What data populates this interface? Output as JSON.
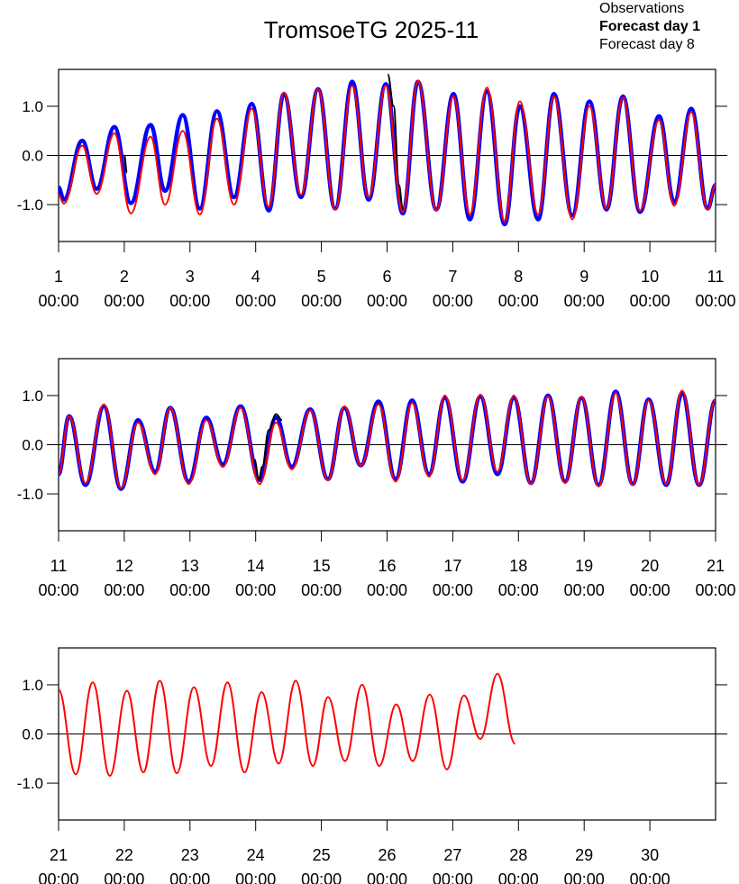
{
  "chart_data": [
    {
      "type": "line",
      "title": "TromsoeTG 2025-11",
      "xlim": [
        1,
        11
      ],
      "ylim": [
        -1.75,
        1.75
      ],
      "xticks": [
        {
          "value": 1,
          "label": [
            "1",
            "00:00"
          ]
        },
        {
          "value": 2,
          "label": [
            "2",
            "00:00"
          ]
        },
        {
          "value": 3,
          "label": [
            "3",
            "00:00"
          ]
        },
        {
          "value": 4,
          "label": [
            "4",
            "00:00"
          ]
        },
        {
          "value": 5,
          "label": [
            "5",
            "00:00"
          ]
        },
        {
          "value": 6,
          "label": [
            "6",
            "00:00"
          ]
        },
        {
          "value": 7,
          "label": [
            "7",
            "00:00"
          ]
        },
        {
          "value": 8,
          "label": [
            "8",
            "00:00"
          ]
        },
        {
          "value": 9,
          "label": [
            "9",
            "00:00"
          ]
        },
        {
          "value": 10,
          "label": [
            "10",
            "00:00"
          ]
        },
        {
          "value": 11,
          "label": [
            "11",
            "00:00"
          ]
        }
      ],
      "yticks": [
        {
          "value": -1,
          "label": "-1.0"
        },
        {
          "value": 0,
          "label": "0.0"
        },
        {
          "value": 1,
          "label": "1.0"
        }
      ],
      "zero_line": true,
      "series": [
        {
          "name": "Observations",
          "color": "#000000",
          "width": 2,
          "x": [
            2.0,
            2.04,
            2.05,
            6.01,
            6.1,
            6.18,
            6.24
          ],
          "values": [
            0.0,
            -0.35,
            null,
            1.65,
            1.0,
            -0.6,
            -1.1
          ]
        },
        {
          "name": "Forecast day 1",
          "color": "#0000ff",
          "width": 4.5,
          "bold": true,
          "x": [
            1.0,
            1.08,
            1.36,
            1.58,
            1.85,
            2.1,
            2.4,
            2.62,
            2.89,
            3.15,
            3.41,
            3.67,
            3.94,
            4.2,
            4.43,
            4.69,
            4.95,
            5.21,
            5.47,
            5.72,
            5.98,
            6.24,
            6.47,
            6.75,
            7.01,
            7.26,
            7.52,
            7.79,
            8.02,
            8.3,
            8.54,
            8.82,
            9.08,
            9.34,
            9.59,
            9.85,
            10.14,
            10.37,
            10.63,
            10.88,
            11.0
          ],
          "values": [
            -0.65,
            -0.9,
            0.3,
            -0.68,
            0.58,
            -0.97,
            0.62,
            -0.72,
            0.82,
            -1.08,
            0.9,
            -0.85,
            1.05,
            -1.12,
            1.25,
            -0.85,
            1.35,
            -1.08,
            1.5,
            -0.9,
            1.45,
            -1.18,
            1.5,
            -1.1,
            1.25,
            -1.3,
            1.3,
            -1.4,
            1.0,
            -1.3,
            1.25,
            -1.22,
            1.1,
            -1.1,
            1.2,
            -1.15,
            0.8,
            -0.95,
            0.95,
            -1.08,
            -0.6
          ]
        },
        {
          "name": "Forecast day 8",
          "color": "#ff0000",
          "width": 2,
          "x": [
            1.0,
            1.08,
            1.36,
            1.58,
            1.85,
            2.1,
            2.4,
            2.62,
            2.89,
            3.15,
            3.41,
            3.67,
            3.94,
            4.2,
            4.43,
            4.69,
            4.95,
            5.21,
            5.47,
            5.72,
            5.98,
            6.24,
            6.47,
            6.75,
            7.01,
            7.26,
            7.52,
            7.79,
            8.02,
            8.3,
            8.54,
            8.82,
            9.08,
            9.34,
            9.59,
            9.85,
            10.14,
            10.37,
            10.63,
            10.88,
            11.0
          ],
          "values": [
            -0.8,
            -0.98,
            0.2,
            -0.78,
            0.45,
            -1.18,
            0.38,
            -1.0,
            0.5,
            -1.2,
            0.75,
            -1.0,
            0.95,
            -1.05,
            1.28,
            -0.8,
            1.35,
            -1.1,
            1.42,
            -0.85,
            1.42,
            -1.15,
            1.52,
            -1.12,
            1.2,
            -1.2,
            1.38,
            -1.35,
            1.1,
            -1.2,
            1.2,
            -1.3,
            1.0,
            -1.08,
            1.18,
            -1.12,
            0.72,
            -1.02,
            0.88,
            -1.1,
            -0.6
          ]
        }
      ]
    },
    {
      "type": "line",
      "xlim": [
        11,
        21
      ],
      "ylim": [
        -1.75,
        1.75
      ],
      "xticks": [
        {
          "value": 11,
          "label": [
            "11",
            "00:00"
          ]
        },
        {
          "value": 12,
          "label": [
            "12",
            "00:00"
          ]
        },
        {
          "value": 13,
          "label": [
            "13",
            "00:00"
          ]
        },
        {
          "value": 14,
          "label": [
            "14",
            "00:00"
          ]
        },
        {
          "value": 15,
          "label": [
            "15",
            "00:00"
          ]
        },
        {
          "value": 16,
          "label": [
            "16",
            "00:00"
          ]
        },
        {
          "value": 17,
          "label": [
            "17",
            "00:00"
          ]
        },
        {
          "value": 18,
          "label": [
            "18",
            "00:00"
          ]
        },
        {
          "value": 19,
          "label": [
            "19",
            "00:00"
          ]
        },
        {
          "value": 20,
          "label": [
            "20",
            "00:00"
          ]
        },
        {
          "value": 21,
          "label": [
            "21",
            "00:00"
          ]
        }
      ],
      "yticks": [
        {
          "value": -1,
          "label": "-1.0"
        },
        {
          "value": 0,
          "label": "0.0"
        },
        {
          "value": 1,
          "label": "1.0"
        }
      ],
      "zero_line": true,
      "series": [
        {
          "color": "#000000",
          "width": 2,
          "x": [
            13.98,
            14.05,
            14.1,
            14.2,
            14.31,
            14.4
          ],
          "values": [
            -0.3,
            -0.7,
            -0.45,
            0.3,
            0.62,
            0.5
          ]
        },
        {
          "color": "#0000ff",
          "width": 4.5,
          "x": [
            11.0,
            11.16,
            11.41,
            11.69,
            11.95,
            12.21,
            12.47,
            12.7,
            12.98,
            13.25,
            13.5,
            13.77,
            14.06,
            14.31,
            14.55,
            14.83,
            15.1,
            15.35,
            15.6,
            15.87,
            16.13,
            16.38,
            16.64,
            16.88,
            17.15,
            17.42,
            17.68,
            17.93,
            18.19,
            18.45,
            18.71,
            18.96,
            19.22,
            19.48,
            19.74,
            19.98,
            20.25,
            20.49,
            20.75,
            21.0
          ],
          "values": [
            -0.6,
            0.58,
            -0.82,
            0.78,
            -0.9,
            0.5,
            -0.55,
            0.75,
            -0.75,
            0.55,
            -0.4,
            0.78,
            -0.72,
            0.55,
            -0.45,
            0.72,
            -0.7,
            0.75,
            -0.42,
            0.88,
            -0.7,
            0.9,
            -0.6,
            0.95,
            -0.75,
            0.98,
            -0.6,
            0.95,
            -0.78,
            1.0,
            -0.75,
            0.95,
            -0.82,
            1.08,
            -0.8,
            0.92,
            -0.82,
            1.05,
            -0.82,
            0.9
          ]
        },
        {
          "color": "#ff0000",
          "width": 2,
          "x": [
            11.0,
            11.16,
            11.41,
            11.69,
            11.95,
            12.21,
            12.47,
            12.7,
            12.98,
            13.25,
            13.5,
            13.77,
            14.06,
            14.31,
            14.55,
            14.83,
            15.1,
            15.35,
            15.6,
            15.87,
            16.13,
            16.38,
            16.64,
            16.88,
            17.15,
            17.42,
            17.68,
            17.93,
            18.19,
            18.45,
            18.71,
            18.96,
            19.22,
            19.48,
            19.74,
            19.98,
            20.25,
            20.49,
            20.75,
            21.0
          ],
          "values": [
            -0.6,
            0.58,
            -0.78,
            0.82,
            -0.88,
            0.45,
            -0.6,
            0.75,
            -0.8,
            0.5,
            -0.45,
            0.75,
            -0.8,
            0.45,
            -0.5,
            0.7,
            -0.72,
            0.78,
            -0.42,
            0.82,
            -0.75,
            0.85,
            -0.65,
            1.0,
            -0.72,
            1.02,
            -0.55,
            1.0,
            -0.8,
            0.98,
            -0.78,
            0.98,
            -0.85,
            1.05,
            -0.82,
            0.9,
            -0.8,
            1.1,
            -0.82,
            0.92
          ]
        }
      ]
    },
    {
      "type": "line",
      "xlim": [
        21,
        31
      ],
      "ylim": [
        -1.75,
        1.75
      ],
      "xticks": [
        {
          "value": 21,
          "label": [
            "21",
            "00:00"
          ]
        },
        {
          "value": 22,
          "label": [
            "22",
            "00:00"
          ]
        },
        {
          "value": 23,
          "label": [
            "23",
            "00:00"
          ]
        },
        {
          "value": 24,
          "label": [
            "24",
            "00:00"
          ]
        },
        {
          "value": 25,
          "label": [
            "25",
            "00:00"
          ]
        },
        {
          "value": 26,
          "label": [
            "26",
            "00:00"
          ]
        },
        {
          "value": 27,
          "label": [
            "27",
            "00:00"
          ]
        },
        {
          "value": 28,
          "label": [
            "28",
            "00:00"
          ]
        },
        {
          "value": 29,
          "label": [
            "29",
            "00:00"
          ]
        },
        {
          "value": 30,
          "label": [
            "30",
            "00:00"
          ]
        }
      ],
      "yticks": [
        {
          "value": -1,
          "label": "-1.0"
        },
        {
          "value": 0,
          "label": "0.0"
        },
        {
          "value": 1,
          "label": "1.0"
        }
      ],
      "zero_line": true,
      "series": [
        {
          "color": "#ff0000",
          "width": 2,
          "x": [
            21.0,
            21.26,
            21.52,
            21.78,
            22.04,
            22.29,
            22.54,
            22.8,
            23.06,
            23.32,
            23.57,
            23.83,
            24.09,
            24.35,
            24.61,
            24.87,
            25.1,
            25.36,
            25.62,
            25.88,
            26.14,
            26.39,
            26.65,
            26.91,
            27.17,
            27.42,
            27.68,
            27.95
          ],
          "values": [
            0.9,
            -0.82,
            1.05,
            -0.85,
            0.88,
            -0.78,
            1.08,
            -0.8,
            0.95,
            -0.65,
            1.05,
            -0.78,
            0.85,
            -0.6,
            1.08,
            -0.65,
            0.75,
            -0.55,
            1.0,
            -0.65,
            0.6,
            -0.55,
            0.8,
            -0.72,
            0.78,
            -0.1,
            1.22,
            -0.2
          ]
        }
      ]
    }
  ]
}
